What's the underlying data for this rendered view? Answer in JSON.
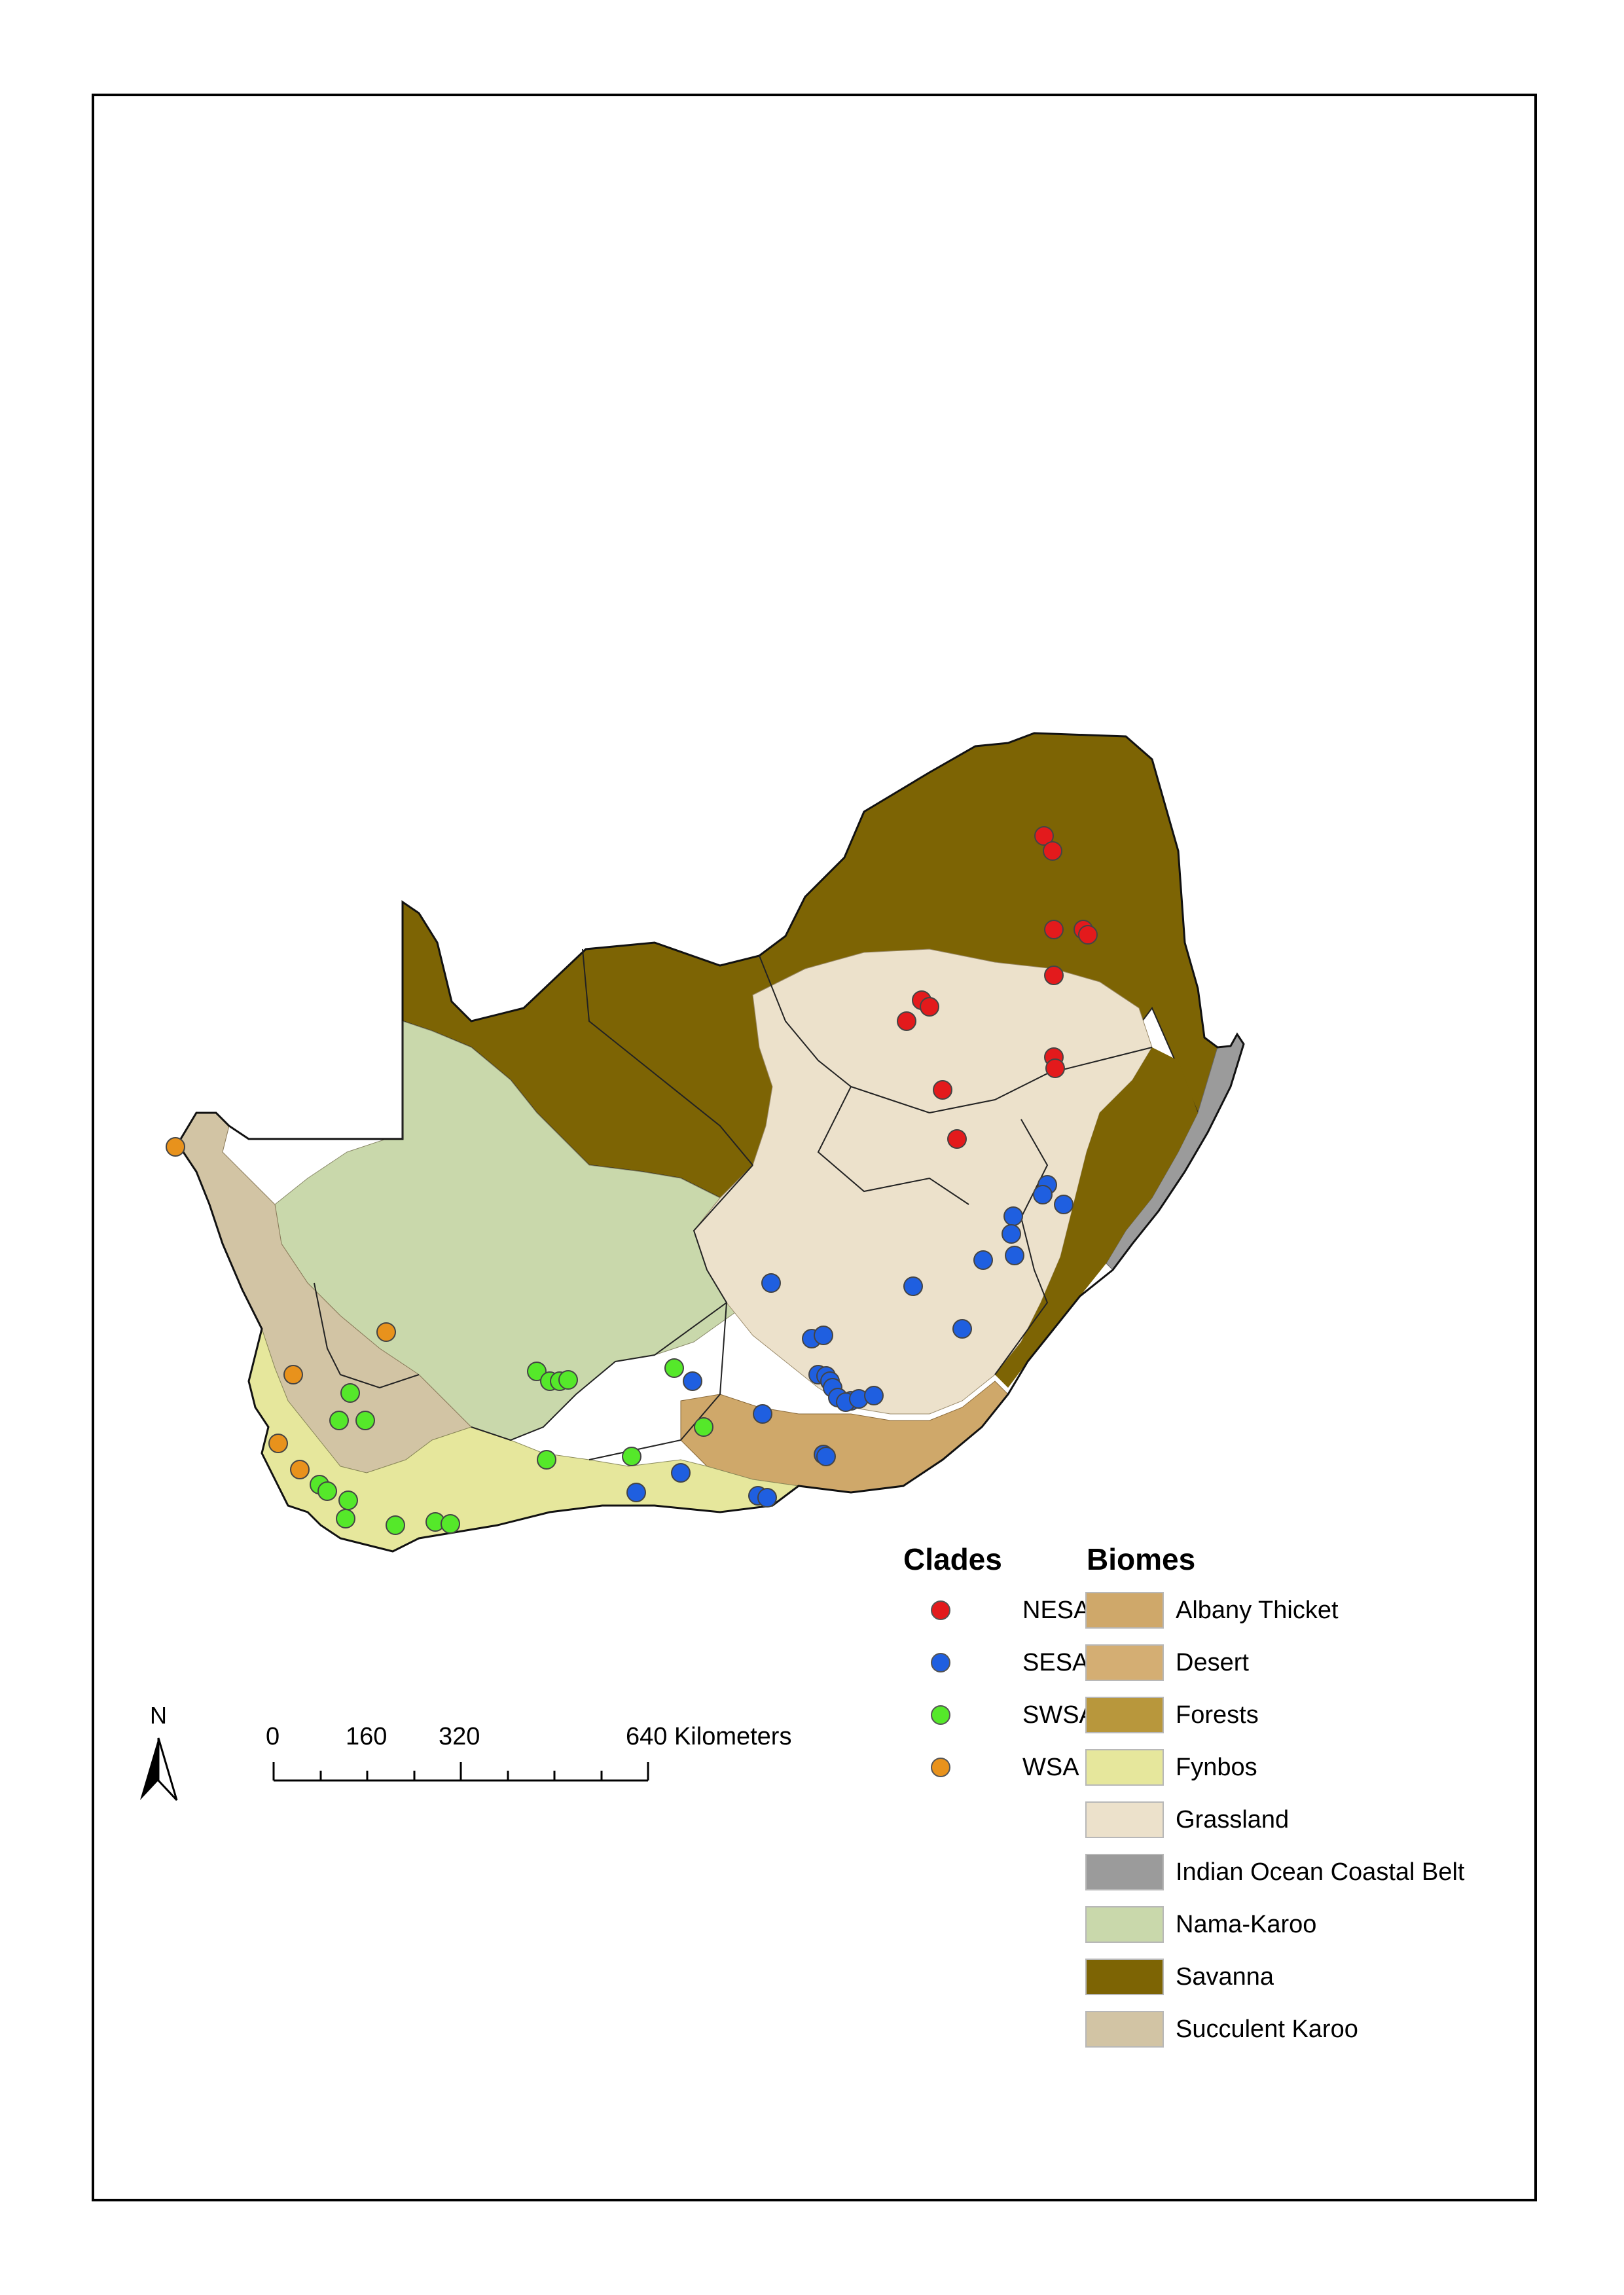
{
  "legend": {
    "clades_title": "Clades",
    "biomes_title": "Biomes",
    "clades": [
      {
        "label": "NESA",
        "color": "#e31a1c"
      },
      {
        "label": "SESA",
        "color": "#1f5fe0"
      },
      {
        "label": "SWSA",
        "color": "#55e82a"
      },
      {
        "label": "WSA",
        "color": "#e8921c"
      }
    ],
    "biomes": [
      {
        "label": "Albany Thicket",
        "color": "#cfa86a"
      },
      {
        "label": "Desert",
        "color": "#d4ae73"
      },
      {
        "label": "Forests",
        "color": "#b8973c"
      },
      {
        "label": "Fynbos",
        "color": "#e6e79c"
      },
      {
        "label": "Grassland",
        "color": "#ece1cb"
      },
      {
        "label": "Indian Ocean Coastal Belt",
        "color": "#9b9b9b"
      },
      {
        "label": "Nama-Karoo",
        "color": "#c9d8ab"
      },
      {
        "label": "Savanna",
        "color": "#7d6404"
      },
      {
        "label": "Succulent Karoo",
        "color": "#d2c4a4"
      }
    ]
  },
  "scale_bar": {
    "ticks": [
      "0",
      "160",
      "320",
      "640 Kilometers"
    ]
  },
  "north_arrow": {
    "label": "N"
  }
}
